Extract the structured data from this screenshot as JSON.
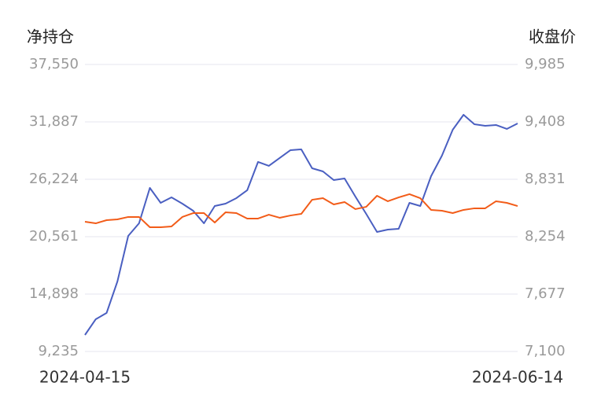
{
  "chart_data": {
    "type": "line",
    "y_label": "净持仓",
    "y2_label": "收盘价",
    "categories": [
      "2024-04-15",
      null,
      null,
      null,
      null,
      null,
      null,
      null,
      null,
      null,
      null,
      null,
      null,
      null,
      null,
      null,
      null,
      null,
      null,
      null,
      null,
      null,
      null,
      null,
      null,
      null,
      null,
      null,
      null,
      null,
      null,
      null,
      null,
      null,
      null,
      null,
      null,
      null,
      null,
      null,
      "2024-06-14"
    ],
    "series": [
      {
        "color": "#4a5fc1",
        "axis": "y",
        "values": [
          10864,
          12416,
          13036,
          16140,
          20639,
          21881,
          25372,
          23898,
          24441,
          23820,
          23122,
          21881,
          23587,
          23820,
          24363,
          25139,
          27932,
          27544,
          28320,
          29095,
          29173,
          27311,
          27001,
          26147,
          26303,
          24518,
          22812,
          21027,
          21260,
          21337,
          23898,
          23587,
          26535,
          28552,
          31113,
          32587,
          31656,
          31500,
          31578,
          31190,
          31733
        ]
      },
      {
        "color": "#f25c19",
        "axis": "y2",
        "values": [
          8404,
          8388,
          8420,
          8428,
          8452,
          8452,
          8349,
          8349,
          8357,
          8452,
          8491,
          8491,
          8396,
          8499,
          8491,
          8436,
          8436,
          8475,
          8444,
          8467,
          8483,
          8625,
          8641,
          8578,
          8602,
          8531,
          8554,
          8665,
          8610,
          8649,
          8681,
          8641,
          8523,
          8515,
          8491,
          8523,
          8539,
          8539,
          8610,
          8594,
          8562
        ]
      }
    ],
    "ylim": [
      9235,
      37550
    ],
    "yticks": [
      {
        "value": 9235,
        "label": "9,235"
      },
      {
        "value": 14898,
        "label": "14,898"
      },
      {
        "value": 20561,
        "label": "20,561"
      },
      {
        "value": 26224,
        "label": "26,224"
      },
      {
        "value": 31887,
        "label": "31,887"
      },
      {
        "value": 37550,
        "label": "37,550"
      }
    ],
    "y2lim": [
      7100,
      9985
    ],
    "y2ticks": [
      {
        "value": 7100,
        "label": "7,100"
      },
      {
        "value": 7677,
        "label": "7,677"
      },
      {
        "value": 8254,
        "label": "8,254"
      },
      {
        "value": 8831,
        "label": "8,831"
      },
      {
        "value": 9408,
        "label": "9,408"
      },
      {
        "value": 9985,
        "label": "9,985"
      }
    ],
    "grid": true
  }
}
